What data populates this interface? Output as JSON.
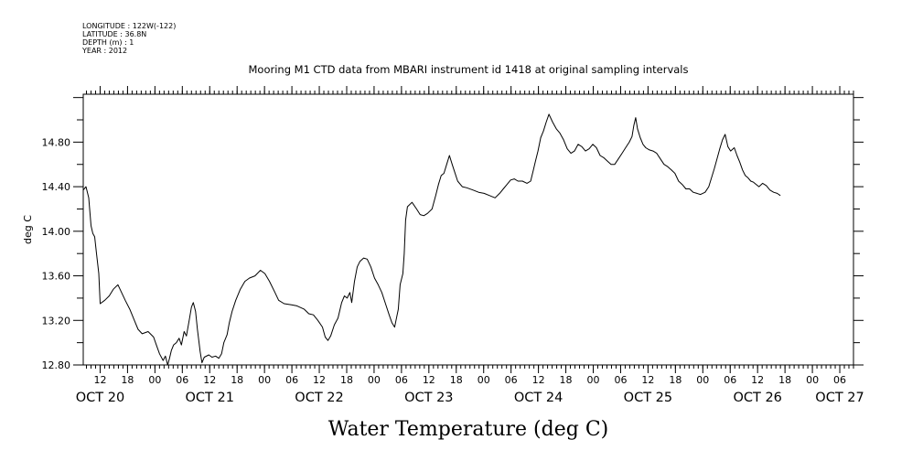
{
  "metadata": {
    "lines": [
      "LONGITUDE : 122W(-122)",
      "LATITUDE : 36.8N",
      "DEPTH (m) : 1",
      "YEAR : 2012"
    ]
  },
  "chart_data": {
    "type": "line",
    "title": "Mooring M1 CTD data from MBARI instrument id 1418 at original sampling intervals",
    "xlabel": "Water Temperature (deg C)",
    "ylabel": "deg C",
    "x_unit": "hours from 2012-10-20 00:00",
    "xlim": [
      8.3,
      177
    ],
    "ylim": [
      12.8,
      15.23
    ],
    "y_ticks": [
      "12.80",
      "13.20",
      "13.60",
      "14.00",
      "14.40",
      "14.80"
    ],
    "x_tick_labels": [
      {
        "t": 12,
        "label": "12"
      },
      {
        "t": 18,
        "label": "18"
      },
      {
        "t": 24,
        "label": "00"
      },
      {
        "t": 30,
        "label": "06"
      },
      {
        "t": 36,
        "label": "12"
      },
      {
        "t": 42,
        "label": "18"
      },
      {
        "t": 48,
        "label": "00"
      },
      {
        "t": 54,
        "label": "06"
      },
      {
        "t": 60,
        "label": "12"
      },
      {
        "t": 66,
        "label": "18"
      },
      {
        "t": 72,
        "label": "00"
      },
      {
        "t": 78,
        "label": "06"
      },
      {
        "t": 84,
        "label": "12"
      },
      {
        "t": 90,
        "label": "18"
      },
      {
        "t": 96,
        "label": "00"
      },
      {
        "t": 102,
        "label": "06"
      },
      {
        "t": 108,
        "label": "12"
      },
      {
        "t": 114,
        "label": "18"
      },
      {
        "t": 120,
        "label": "00"
      },
      {
        "t": 126,
        "label": "06"
      },
      {
        "t": 132,
        "label": "12"
      },
      {
        "t": 138,
        "label": "18"
      },
      {
        "t": 144,
        "label": "00"
      },
      {
        "t": 150,
        "label": "06"
      },
      {
        "t": 156,
        "label": "12"
      },
      {
        "t": 162,
        "label": "18"
      },
      {
        "t": 168,
        "label": "00"
      },
      {
        "t": 174,
        "label": "06"
      }
    ],
    "date_labels": [
      {
        "t": 12,
        "label": "OCT 20"
      },
      {
        "t": 36,
        "label": "OCT 21"
      },
      {
        "t": 60,
        "label": "OCT 22"
      },
      {
        "t": 84,
        "label": "OCT 23"
      },
      {
        "t": 108,
        "label": "OCT 24"
      },
      {
        "t": 132,
        "label": "OCT 25"
      },
      {
        "t": 156,
        "label": "OCT 26"
      },
      {
        "t": 174,
        "label": "OCT 27"
      }
    ],
    "series": [
      {
        "points": [
          [
            8.3,
            14.37
          ],
          [
            8.9,
            14.4
          ],
          [
            9.5,
            14.3
          ],
          [
            10.0,
            14.05
          ],
          [
            10.4,
            13.98
          ],
          [
            10.8,
            13.95
          ],
          [
            11.2,
            13.8
          ],
          [
            11.7,
            13.62
          ],
          [
            12.0,
            13.35
          ],
          [
            13.0,
            13.38
          ],
          [
            14.0,
            13.42
          ],
          [
            14.9,
            13.48
          ],
          [
            15.9,
            13.52
          ],
          [
            16.7,
            13.45
          ],
          [
            17.5,
            13.38
          ],
          [
            18.5,
            13.3
          ],
          [
            19.5,
            13.2
          ],
          [
            20.3,
            13.12
          ],
          [
            21.2,
            13.08
          ],
          [
            22.5,
            13.1
          ],
          [
            23.7,
            13.05
          ],
          [
            24.3,
            12.98
          ],
          [
            25.0,
            12.9
          ],
          [
            25.8,
            12.84
          ],
          [
            26.3,
            12.88
          ],
          [
            26.8,
            12.8
          ],
          [
            27.2,
            12.86
          ],
          [
            27.6,
            12.93
          ],
          [
            28.1,
            12.98
          ],
          [
            28.7,
            13.0
          ],
          [
            29.3,
            13.04
          ],
          [
            29.8,
            12.98
          ],
          [
            30.4,
            13.1
          ],
          [
            30.9,
            13.06
          ],
          [
            31.5,
            13.2
          ],
          [
            32.0,
            13.32
          ],
          [
            32.4,
            13.36
          ],
          [
            32.9,
            13.28
          ],
          [
            33.3,
            13.12
          ],
          [
            33.9,
            12.92
          ],
          [
            34.3,
            12.82
          ],
          [
            34.8,
            12.87
          ],
          [
            35.8,
            12.89
          ],
          [
            36.5,
            12.87
          ],
          [
            37.3,
            12.88
          ],
          [
            38.0,
            12.86
          ],
          [
            38.6,
            12.9
          ],
          [
            39.1,
            13.0
          ],
          [
            39.8,
            13.07
          ],
          [
            40.3,
            13.18
          ],
          [
            40.9,
            13.28
          ],
          [
            41.7,
            13.38
          ],
          [
            42.7,
            13.48
          ],
          [
            43.7,
            13.55
          ],
          [
            44.7,
            13.58
          ],
          [
            45.9,
            13.6
          ],
          [
            47.1,
            13.65
          ],
          [
            48.1,
            13.62
          ],
          [
            49.1,
            13.55
          ],
          [
            50.3,
            13.45
          ],
          [
            51.1,
            13.38
          ],
          [
            52.3,
            13.35
          ],
          [
            53.9,
            13.34
          ],
          [
            55.1,
            13.33
          ],
          [
            56.7,
            13.3
          ],
          [
            57.7,
            13.26
          ],
          [
            58.7,
            13.25
          ],
          [
            59.7,
            13.2
          ],
          [
            60.7,
            13.14
          ],
          [
            61.3,
            13.05
          ],
          [
            61.9,
            13.02
          ],
          [
            62.5,
            13.06
          ],
          [
            63.3,
            13.16
          ],
          [
            64.1,
            13.22
          ],
          [
            64.9,
            13.36
          ],
          [
            65.5,
            13.42
          ],
          [
            66.1,
            13.4
          ],
          [
            66.7,
            13.45
          ],
          [
            67.1,
            13.36
          ],
          [
            67.7,
            13.55
          ],
          [
            68.3,
            13.68
          ],
          [
            68.9,
            13.73
          ],
          [
            69.7,
            13.76
          ],
          [
            70.5,
            13.75
          ],
          [
            71.3,
            13.68
          ],
          [
            72.1,
            13.58
          ],
          [
            72.9,
            13.52
          ],
          [
            73.7,
            13.45
          ],
          [
            74.5,
            13.35
          ],
          [
            75.3,
            13.25
          ],
          [
            75.9,
            13.18
          ],
          [
            76.5,
            13.14
          ],
          [
            76.9,
            13.22
          ],
          [
            77.3,
            13.3
          ],
          [
            77.7,
            13.52
          ],
          [
            78.3,
            13.62
          ],
          [
            78.6,
            13.8
          ],
          [
            78.9,
            14.1
          ],
          [
            79.3,
            14.22
          ],
          [
            80.3,
            14.26
          ],
          [
            81.3,
            14.2
          ],
          [
            82.1,
            14.15
          ],
          [
            82.9,
            14.14
          ],
          [
            83.7,
            14.16
          ],
          [
            84.7,
            14.2
          ],
          [
            85.5,
            14.32
          ],
          [
            86.1,
            14.42
          ],
          [
            86.7,
            14.5
          ],
          [
            87.3,
            14.52
          ],
          [
            87.9,
            14.6
          ],
          [
            88.5,
            14.68
          ],
          [
            89.1,
            14.6
          ],
          [
            89.5,
            14.55
          ],
          [
            90.3,
            14.45
          ],
          [
            91.3,
            14.4
          ],
          [
            92.3,
            14.39
          ],
          [
            93.7,
            14.37
          ],
          [
            94.9,
            14.35
          ],
          [
            96.1,
            14.34
          ],
          [
            97.3,
            14.32
          ],
          [
            98.5,
            14.3
          ],
          [
            99.5,
            14.34
          ],
          [
            100.3,
            14.38
          ],
          [
            101.1,
            14.42
          ],
          [
            101.9,
            14.46
          ],
          [
            102.7,
            14.47
          ],
          [
            103.5,
            14.45
          ],
          [
            104.5,
            14.45
          ],
          [
            105.5,
            14.43
          ],
          [
            106.3,
            14.45
          ],
          [
            106.9,
            14.55
          ],
          [
            107.3,
            14.62
          ],
          [
            107.9,
            14.72
          ],
          [
            108.5,
            14.84
          ],
          [
            109.1,
            14.9
          ],
          [
            109.7,
            14.98
          ],
          [
            110.3,
            15.05
          ],
          [
            111.1,
            14.98
          ],
          [
            111.9,
            14.92
          ],
          [
            112.7,
            14.88
          ],
          [
            113.5,
            14.82
          ],
          [
            114.3,
            14.74
          ],
          [
            115.1,
            14.7
          ],
          [
            115.9,
            14.72
          ],
          [
            116.7,
            14.78
          ],
          [
            117.5,
            14.76
          ],
          [
            118.3,
            14.72
          ],
          [
            119.1,
            14.74
          ],
          [
            119.9,
            14.78
          ],
          [
            120.7,
            14.75
          ],
          [
            121.5,
            14.68
          ],
          [
            122.3,
            14.66
          ],
          [
            123.1,
            14.63
          ],
          [
            123.9,
            14.6
          ],
          [
            124.7,
            14.6
          ],
          [
            125.5,
            14.65
          ],
          [
            126.3,
            14.7
          ],
          [
            127.1,
            14.75
          ],
          [
            127.9,
            14.8
          ],
          [
            128.5,
            14.85
          ],
          [
            128.9,
            14.95
          ],
          [
            129.3,
            15.02
          ],
          [
            129.7,
            14.92
          ],
          [
            130.3,
            14.84
          ],
          [
            130.9,
            14.78
          ],
          [
            131.5,
            14.75
          ],
          [
            132.3,
            14.73
          ],
          [
            133.1,
            14.72
          ],
          [
            133.9,
            14.7
          ],
          [
            134.7,
            14.65
          ],
          [
            135.5,
            14.6
          ],
          [
            136.3,
            14.58
          ],
          [
            137.1,
            14.55
          ],
          [
            137.9,
            14.52
          ],
          [
            138.7,
            14.45
          ],
          [
            139.5,
            14.42
          ],
          [
            140.3,
            14.38
          ],
          [
            141.1,
            14.38
          ],
          [
            141.9,
            14.35
          ],
          [
            142.7,
            14.34
          ],
          [
            143.5,
            14.33
          ],
          [
            144.5,
            14.35
          ],
          [
            145.3,
            14.4
          ],
          [
            145.9,
            14.48
          ],
          [
            146.5,
            14.56
          ],
          [
            147.1,
            14.65
          ],
          [
            147.7,
            14.74
          ],
          [
            148.3,
            14.82
          ],
          [
            148.9,
            14.87
          ],
          [
            149.5,
            14.76
          ],
          [
            150.1,
            14.72
          ],
          [
            150.9,
            14.75
          ],
          [
            151.5,
            14.68
          ],
          [
            152.1,
            14.62
          ],
          [
            152.7,
            14.55
          ],
          [
            153.3,
            14.5
          ],
          [
            153.9,
            14.48
          ],
          [
            154.5,
            14.45
          ],
          [
            155.1,
            14.44
          ],
          [
            155.7,
            14.42
          ],
          [
            156.3,
            14.4
          ],
          [
            157.1,
            14.43
          ],
          [
            157.9,
            14.41
          ],
          [
            158.7,
            14.37
          ],
          [
            159.5,
            14.35
          ],
          [
            160.3,
            14.34
          ],
          [
            161.0,
            14.32
          ]
        ]
      }
    ]
  }
}
